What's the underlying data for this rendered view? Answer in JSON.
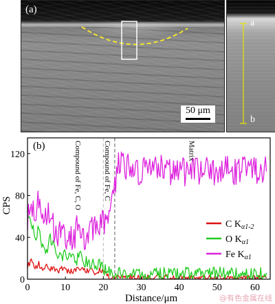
{
  "panel_a": {
    "label": "(a)",
    "scale_bar": "50 μm",
    "line_start": "a",
    "line_end": "b"
  },
  "colors": {
    "C": "#dd1111",
    "O": "#22cc22",
    "Fe": "#dd22dd",
    "dashed_outline": "#ffee22",
    "line_scan": "#e6e600"
  },
  "chart_data": {
    "type": "line",
    "panel_label": "(b)",
    "xlabel": "Distance/μm",
    "ylabel": "CPS",
    "xlim": [
      0,
      64
    ],
    "ylim": [
      0,
      135
    ],
    "xticks": [
      0,
      10,
      20,
      30,
      40,
      50,
      60
    ],
    "yticks": [
      0,
      40,
      80,
      120
    ],
    "legend_position": "bottom-right",
    "series": [
      {
        "name": "C Kα1-2",
        "name_main": "C K",
        "name_sub": "α1-2",
        "x": [
          0,
          1,
          2,
          3,
          4,
          5,
          6,
          7,
          8,
          9,
          10,
          11,
          12,
          13,
          14,
          15,
          16,
          17,
          18,
          19,
          20,
          21,
          22,
          25,
          30,
          35,
          40,
          45,
          50,
          55,
          60,
          63
        ],
        "y": [
          12,
          18,
          10,
          14,
          8,
          12,
          9,
          11,
          7,
          10,
          9,
          8,
          6,
          10,
          8,
          9,
          7,
          8,
          6,
          9,
          6,
          4,
          2,
          1,
          1,
          2,
          1,
          1,
          1,
          1,
          1,
          1
        ]
      },
      {
        "name": "O Kα1",
        "name_main": "O K",
        "name_sub": "α1",
        "x": [
          0,
          1,
          2,
          3,
          4,
          5,
          6,
          7,
          8,
          9,
          10,
          11,
          12,
          13,
          14,
          15,
          16,
          17,
          18,
          19,
          20,
          21,
          22,
          25,
          30,
          35,
          40,
          45,
          50,
          55,
          60,
          63
        ],
        "y": [
          68,
          55,
          38,
          48,
          30,
          25,
          40,
          30,
          22,
          20,
          26,
          23,
          20,
          18,
          22,
          18,
          15,
          16,
          12,
          14,
          10,
          8,
          6,
          5,
          5,
          5,
          6,
          5,
          6,
          5,
          5,
          6
        ]
      },
      {
        "name": "Fe Kα1",
        "name_main": "Fe K",
        "name_sub": "α1",
        "x": [
          0,
          1,
          2,
          3,
          4,
          5,
          6,
          7,
          8,
          9,
          10,
          11,
          12,
          13,
          14,
          15,
          16,
          17,
          18,
          19,
          20,
          21,
          22,
          23,
          24,
          25,
          27,
          30,
          35,
          40,
          45,
          50,
          55,
          60,
          63
        ],
        "y": [
          55,
          75,
          60,
          80,
          68,
          55,
          70,
          48,
          45,
          50,
          42,
          40,
          35,
          48,
          45,
          40,
          42,
          50,
          48,
          55,
          52,
          58,
          65,
          88,
          110,
          108,
          105,
          103,
          105,
          102,
          104,
          103,
          104,
          103,
          103
        ]
      }
    ],
    "annotations": [
      {
        "text": "Compound of Fe, C, O",
        "x": 12
      },
      {
        "text": "Compound of Fe, C",
        "x": 21
      },
      {
        "text": "Matrix",
        "x": 42
      }
    ],
    "boundary_lines_x": [
      20,
      23
    ]
  },
  "watermark": "@有色金属在线"
}
